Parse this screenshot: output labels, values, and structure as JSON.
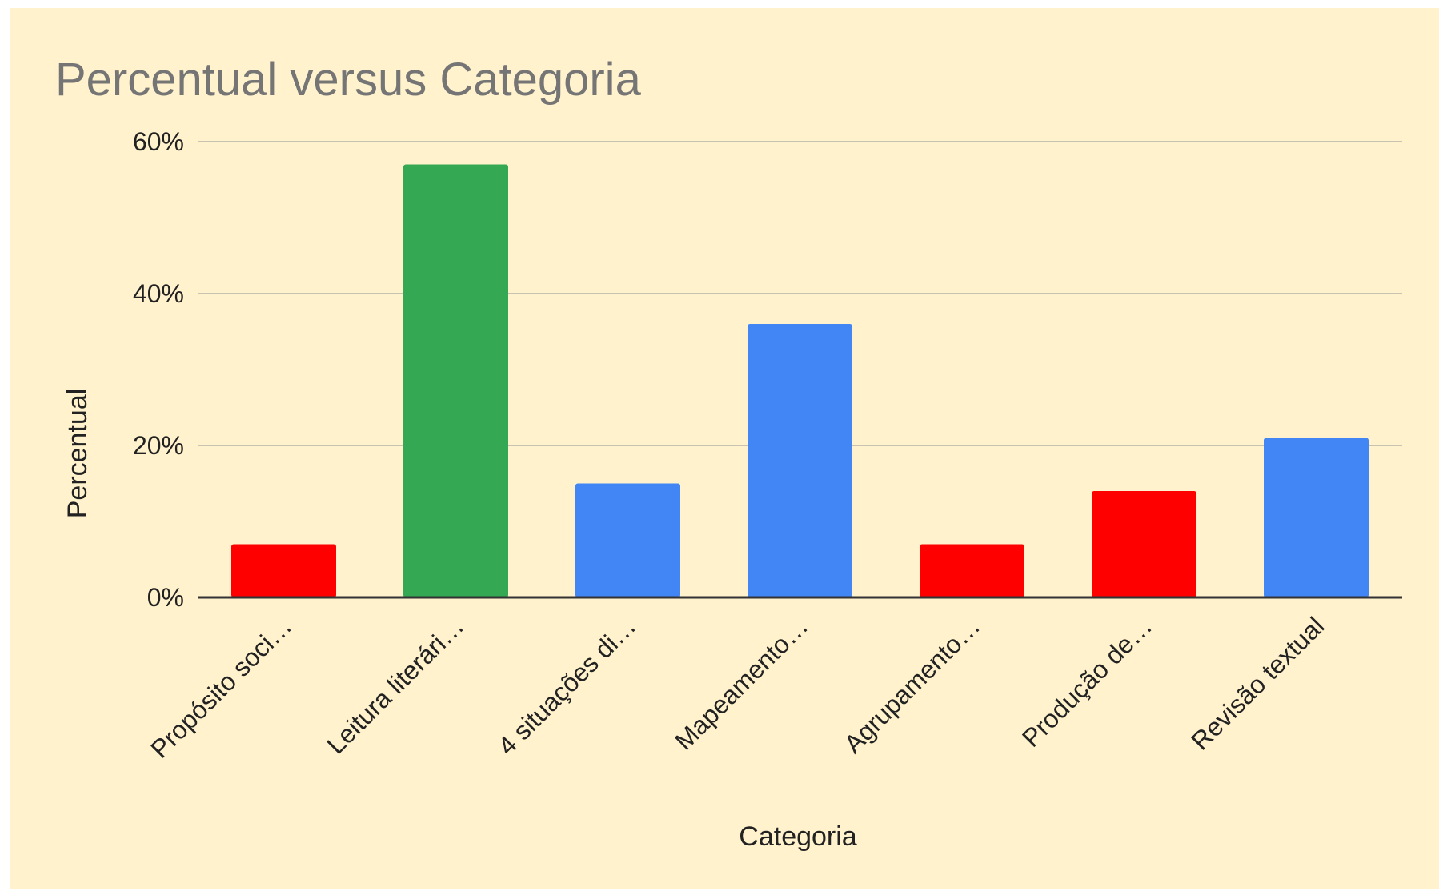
{
  "chart_data": {
    "type": "bar",
    "title": "Percentual versus Categoria",
    "xlabel": "Categoria",
    "ylabel": "Percentual",
    "ylim": [
      0,
      60
    ],
    "yticks": [
      "0%",
      "20%",
      "40%",
      "60%"
    ],
    "ytick_values": [
      0,
      20,
      40,
      60
    ],
    "grid": true,
    "legend": "none",
    "categories": [
      "Propósito soci…",
      "Leitura literári…",
      "4 situações di…",
      "Mapeamento…",
      "Agrupamento…",
      "Produção de…",
      "Revisão textual"
    ],
    "values": [
      7,
      57,
      15,
      36,
      7,
      14,
      21
    ],
    "bar_colors": [
      "#ff0000",
      "#34a853",
      "#4285f4",
      "#4285f4",
      "#ff0000",
      "#ff0000",
      "#4285f4"
    ]
  },
  "colors": {
    "background": "#fff2cc",
    "gridline": "#c8c2b0",
    "baseline": "#333333"
  }
}
